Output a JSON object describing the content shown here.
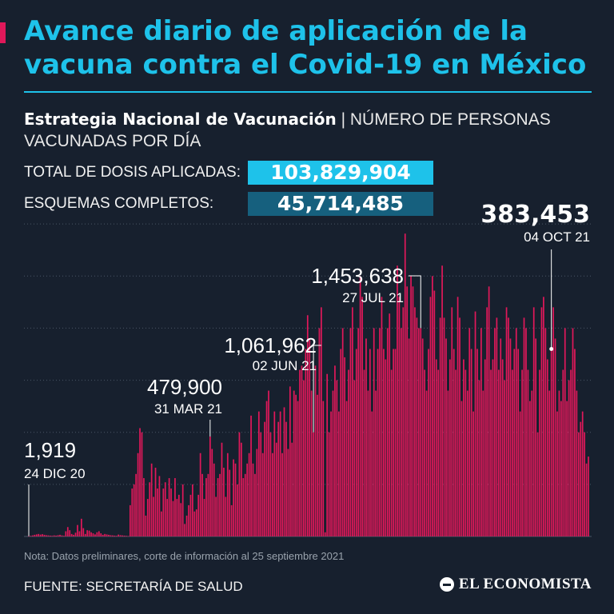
{
  "header": {
    "title": "Avance diario de aplicación de la vacuna contra el Covid-19 en México",
    "subtitle_bold": "Estrategia Nacional de Vacunación",
    "subtitle_rest": " | NÚMERO DE PERSONAS VACUNADAS POR DÍA"
  },
  "stats": {
    "total_label": "TOTAL DE DOSIS APLICADAS:",
    "total_value": "103,829,904",
    "complete_label": "ESQUEMAS COMPLETOS:",
    "complete_value": "45,714,485"
  },
  "colors": {
    "accent": "#e0185a",
    "title": "#1ec2ea",
    "background": "#17202e",
    "box_total": "#1ec2ea",
    "box_complete": "#16607e"
  },
  "chart_data": {
    "type": "bar",
    "x_start": "24 DIC 20",
    "x_end": "04 OCT 21",
    "unit": "personas vacunadas por día",
    "ylim": [
      0,
      1750000
    ],
    "grid": true,
    "values": [
      1919,
      3000,
      5000,
      8000,
      10000,
      12000,
      9000,
      11000,
      8000,
      6000,
      5000,
      4000,
      3000,
      5000,
      4000,
      6000,
      8000,
      5000,
      3000,
      25000,
      45000,
      30000,
      12000,
      8000,
      18000,
      55000,
      25000,
      85000,
      40000,
      12000,
      30000,
      28000,
      20000,
      15000,
      10000,
      20000,
      25000,
      15000,
      8000,
      12000,
      10000,
      8000,
      6000,
      5000,
      4000,
      3000,
      9000,
      6000,
      5000,
      4000,
      3000,
      2000,
      150000,
      230000,
      250000,
      300000,
      400000,
      520000,
      500000,
      280000,
      100000,
      180000,
      260000,
      350000,
      190000,
      330000,
      230000,
      290000,
      120000,
      230000,
      260000,
      180000,
      280000,
      230000,
      170000,
      280000,
      180000,
      200000,
      160000,
      250000,
      60000,
      100000,
      150000,
      200000,
      250000,
      120000,
      130000,
      200000,
      400000,
      300000,
      180000,
      280000,
      300000,
      479900,
      420000,
      350000,
      190000,
      280000,
      300000,
      450000,
      330000,
      190000,
      400000,
      320000,
      150000,
      370000,
      350000,
      250000,
      500000,
      450000,
      280000,
      300000,
      350000,
      400000,
      580000,
      350000,
      300000,
      420000,
      600000,
      500000,
      400000,
      550000,
      650000,
      700000,
      500000,
      400000,
      600000,
      450000,
      550000,
      600000,
      400000,
      620000,
      550000,
      420000,
      720000,
      450000,
      700000,
      680000,
      650000,
      800000,
      820000,
      750000,
      900000,
      1061962,
      950000,
      700000,
      500000,
      820000,
      680000,
      1000000,
      1100000,
      650000,
      20000,
      780000,
      500000,
      600000,
      700000,
      820000,
      750000,
      600000,
      900000,
      1000000,
      860000,
      650000,
      800000,
      1000000,
      1100000,
      750000,
      900000,
      1000000,
      1250000,
      1150000,
      800000,
      950000,
      700000,
      900000,
      600000,
      1000000,
      700000,
      900000,
      1000000,
      1150000,
      900000,
      850000,
      1000000,
      1070000,
      800000,
      900000,
      900000,
      1300000,
      1150000,
      1000000,
      1100000,
      1453638,
      1200000,
      950000,
      1250000,
      1200000,
      1100000,
      1050000,
      1000000,
      1000000,
      950000,
      800000,
      700000,
      900000,
      1150000,
      1250000,
      1180000,
      850000,
      800000,
      1050000,
      1300000,
      1050000,
      950000,
      700000,
      850000,
      1100000,
      900000,
      800000,
      1150000,
      1050000,
      650000,
      850000,
      800000,
      700000,
      1000000,
      900000,
      600000,
      1080000,
      900000,
      750000,
      1000000,
      700000,
      850000,
      1100000,
      1200000,
      800000,
      850000,
      1000000,
      1050000,
      800000,
      950000,
      850000,
      750000,
      1100000,
      1050000,
      950000,
      800000,
      900000,
      1000000,
      900000,
      600000,
      800000,
      1050000,
      1000000,
      800000,
      650000,
      700000,
      1100000,
      950000,
      500000,
      800000,
      1100000,
      1150000,
      1000000,
      850000,
      700000,
      900000,
      1100000,
      950000,
      600000,
      700000,
      650000,
      800000,
      1000000,
      650000,
      750000,
      800000,
      1000000,
      900000,
      700000,
      500000,
      550000,
      600000,
      500000,
      350000,
      383453
    ],
    "annotations": [
      {
        "index": 0,
        "value": "1,919",
        "date": "24 DIC 20"
      },
      {
        "index": 93,
        "value": "479,900",
        "date": "31 MAR 21"
      },
      {
        "index": 146,
        "value": "1,061,962",
        "date": "02 JUN 21"
      },
      {
        "index": 201,
        "value": "1,453,638",
        "date": "27 JUL 21"
      },
      {
        "index": 268,
        "value": "383,453",
        "date": "04 OCT 21"
      }
    ]
  },
  "footer": {
    "note": "Nota: Datos preliminares, corte de información al 25 septiembre 2021",
    "source": "FUENTE: SECRETARÍA DE SALUD",
    "logo": "EL ECONOMISTA"
  }
}
